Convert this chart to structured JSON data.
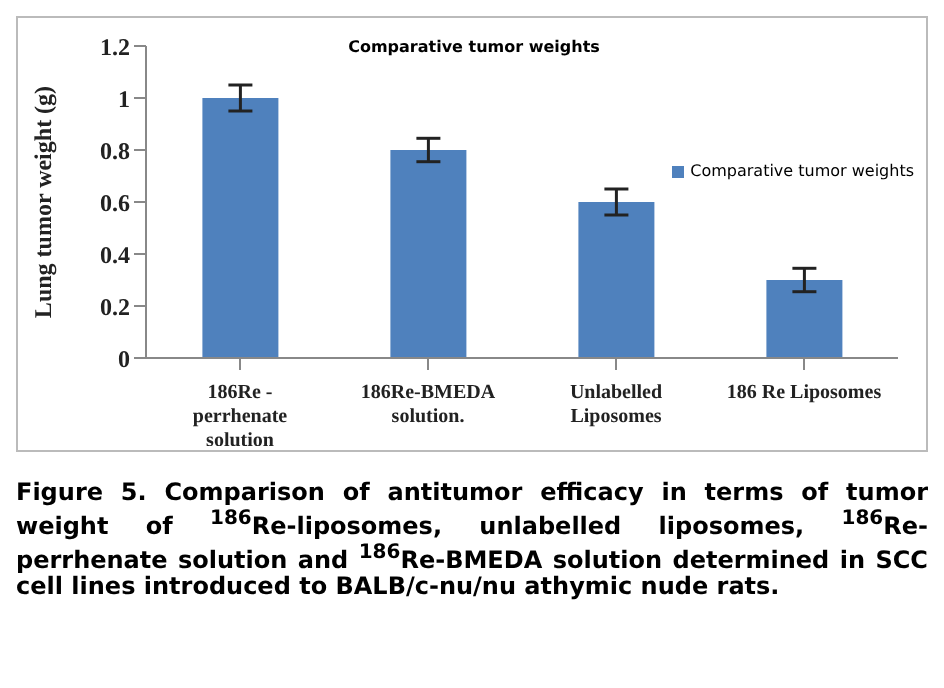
{
  "chart_data": {
    "type": "bar",
    "title": "Comparative tumor weights",
    "ylabel": "Lung tumor weight (g)",
    "categories": [
      "186Re - perrhenate solution",
      "186Re-BMEDA solution.",
      "Unlabelled Liposomes",
      "186 Re Liposomes"
    ],
    "series": [
      {
        "name": "Comparative tumor weights",
        "color": "#4f81bd",
        "values": [
          1.0,
          0.8,
          0.6,
          0.3
        ],
        "errors": [
          0.05,
          0.045,
          0.05,
          0.045
        ]
      }
    ],
    "ylim": [
      0,
      1.2
    ],
    "yticks": [
      0,
      0.2,
      0.4,
      0.6,
      0.8,
      1,
      1.2
    ],
    "grid": false,
    "legend": "right",
    "annotations": [
      "Figure 5. Comparison of antitumor efficacy in terms of tumor weight  of $^{186}$Re-liposomes, unlabelled liposomes, $^{186}$Re-perrhenate solution and $^{186}$Re-BMEDA solution determined in SCC cell lines introduced to BALB/c-nu/nu athymic nude rats."
    ]
  }
}
